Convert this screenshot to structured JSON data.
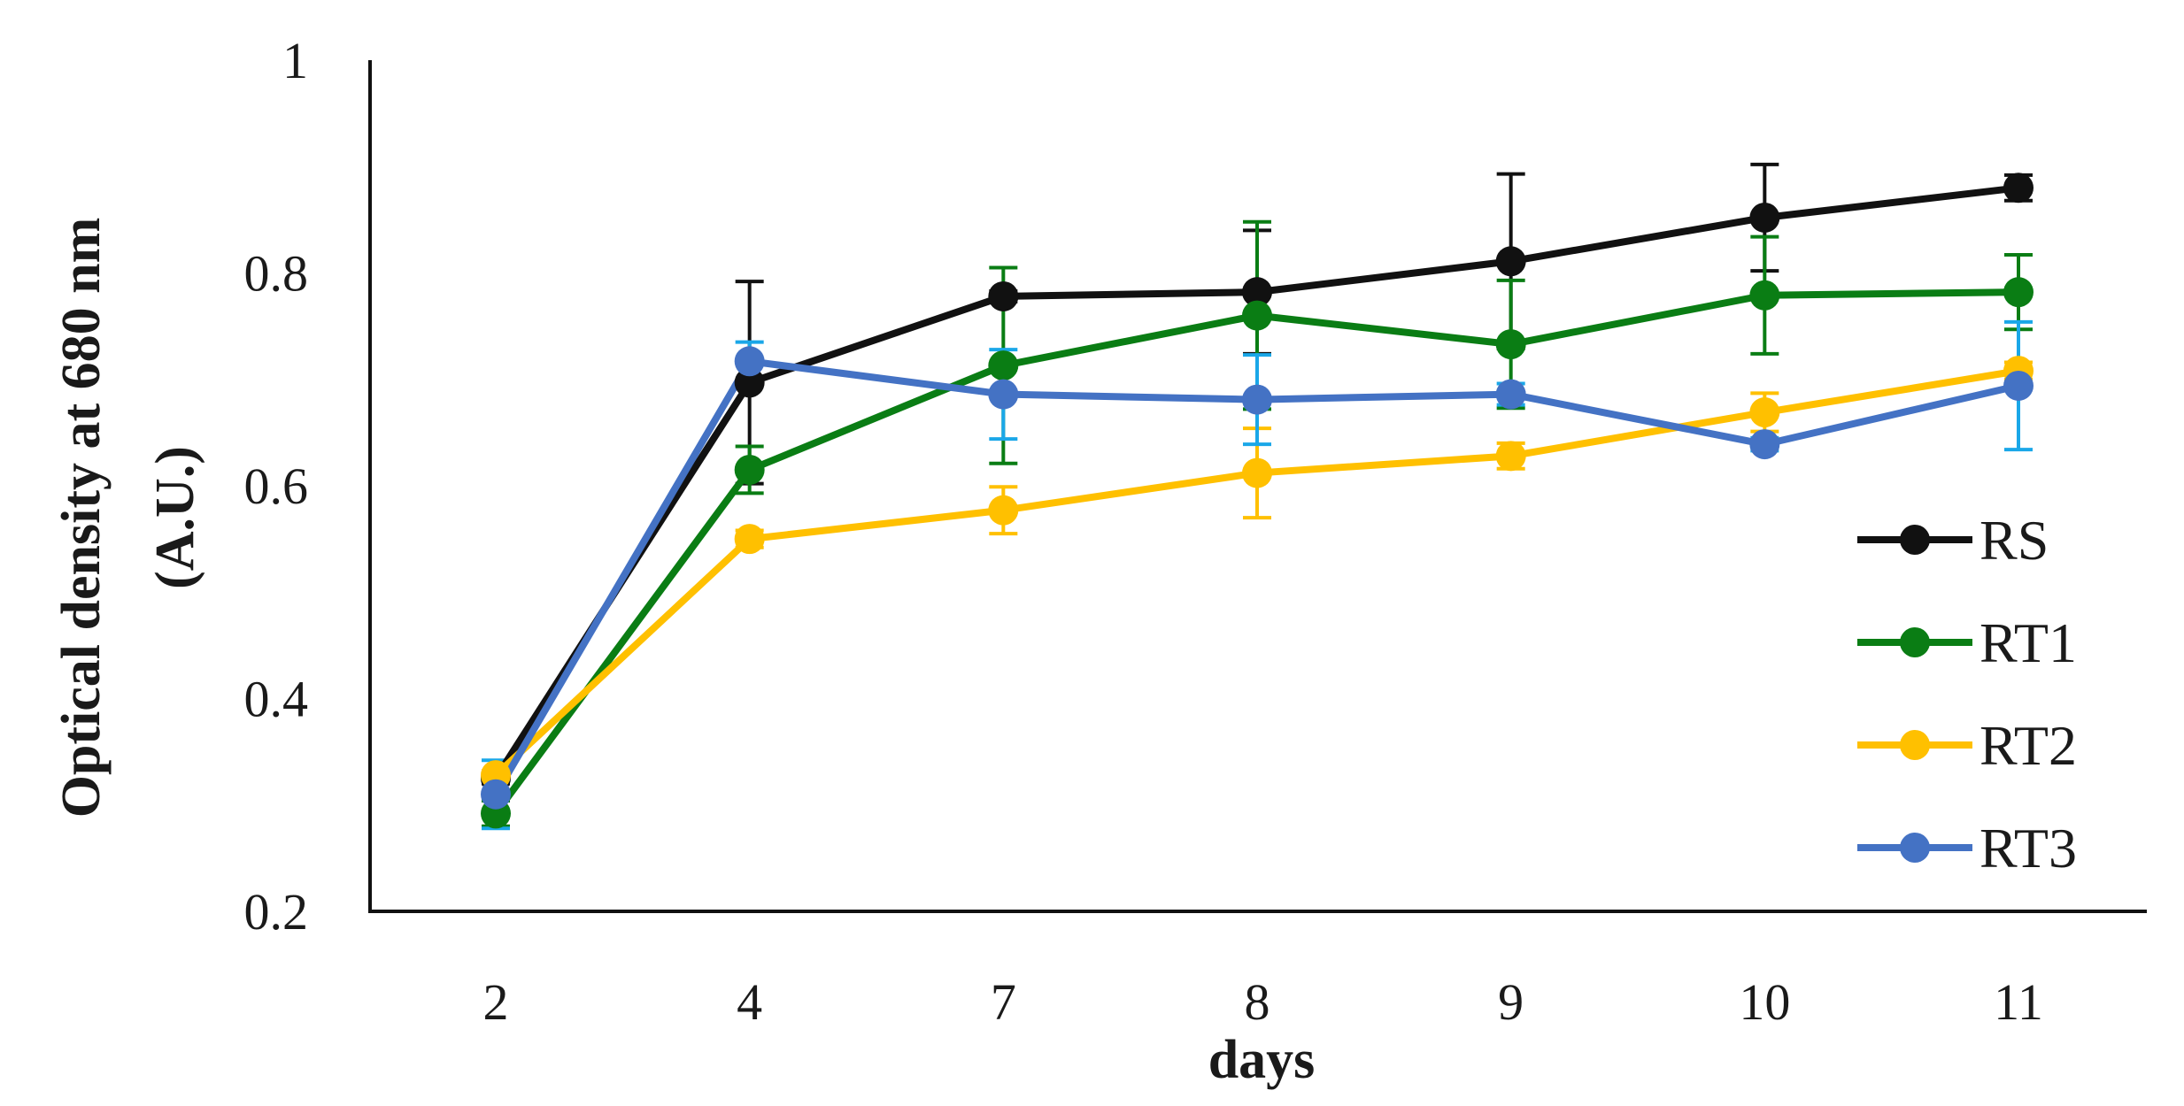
{
  "chart_data": {
    "type": "line",
    "title": "",
    "xlabel": "days",
    "ylabel_line1": "Optical density at 680 nm",
    "ylabel_line2": "(A.U.)",
    "categories": [
      "2",
      "4",
      "7",
      "8",
      "9",
      "10",
      "11"
    ],
    "ylim": [
      0.2,
      1
    ],
    "yticks": [
      0.2,
      0.4,
      0.6,
      0.8,
      1
    ],
    "ytick_labels": [
      "0.2",
      "0.4",
      "0.6",
      "0.8",
      "1"
    ],
    "legend_position": "right",
    "series": [
      {
        "name": "RS",
        "color": "#111111",
        "error_color": "#111111",
        "values": [
          0.325,
          0.697,
          0.778,
          0.782,
          0.811,
          0.852,
          0.88
        ],
        "errors": [
          0.005,
          0.095,
          0.005,
          0.058,
          0.082,
          0.05,
          0.012
        ]
      },
      {
        "name": "RT1",
        "color": "#0a7d14",
        "error_color": "#0a7d14",
        "values": [
          0.292,
          0.615,
          0.713,
          0.76,
          0.733,
          0.779,
          0.782
        ],
        "errors": [
          0.012,
          0.022,
          0.092,
          0.088,
          0.06,
          0.055,
          0.035
        ]
      },
      {
        "name": "RT2",
        "color": "#ffc000",
        "error_color": "#ffc000",
        "values": [
          0.328,
          0.55,
          0.577,
          0.612,
          0.628,
          0.669,
          0.708
        ],
        "errors": [
          0.004,
          0.008,
          0.022,
          0.042,
          0.012,
          0.018,
          0.008
        ]
      },
      {
        "name": "RT3",
        "color": "#4472c4",
        "error_color": "#1aa7e8",
        "values": [
          0.31,
          0.717,
          0.686,
          0.681,
          0.686,
          0.639,
          0.694
        ],
        "errors": [
          0.032,
          0.018,
          0.042,
          0.042,
          0.01,
          0.006,
          0.06
        ]
      }
    ]
  }
}
